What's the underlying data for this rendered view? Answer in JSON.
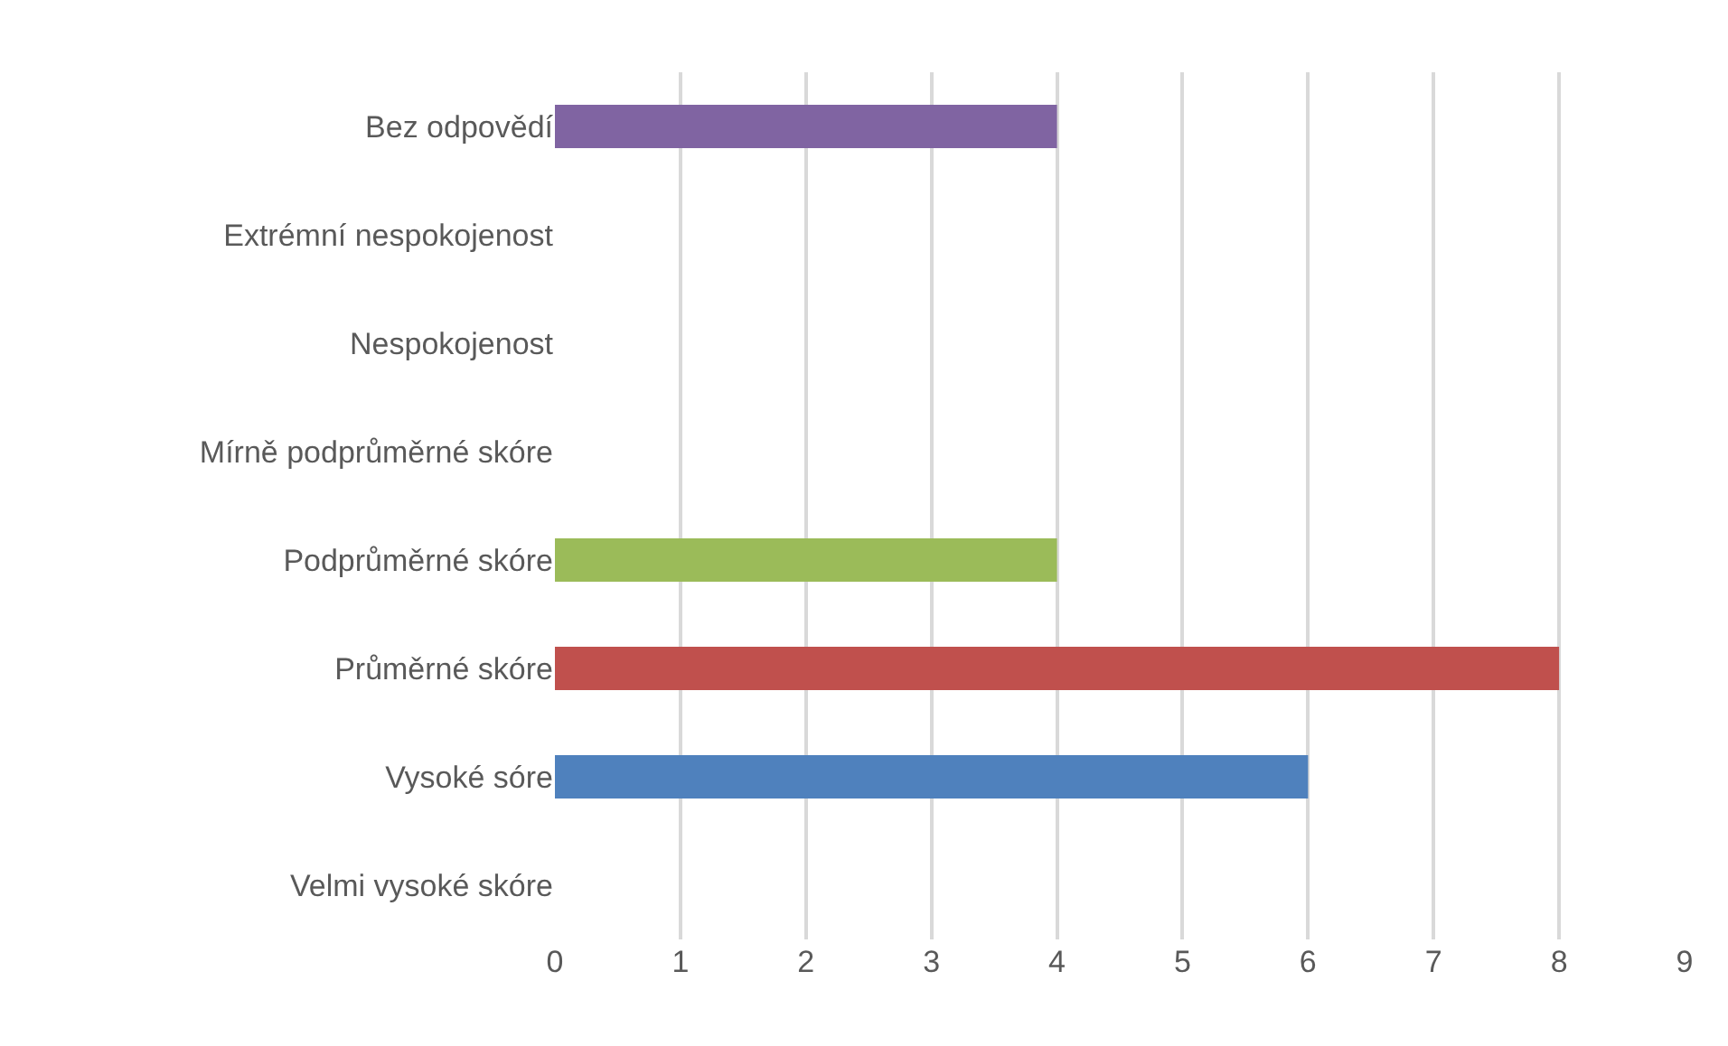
{
  "chart_data": {
    "type": "bar",
    "orientation": "horizontal",
    "categories": [
      "Bez odpovědí",
      "Extrémní nespokojenost",
      "Nespokojenost",
      "Mírně podprůměrné skóre",
      "Podprůměrné skóre",
      "Průměrné skóre",
      "Vysoké sóre",
      "Velmi vysoké skóre"
    ],
    "values": [
      4,
      0,
      0,
      0,
      4,
      8,
      6,
      0
    ],
    "colors": [
      "#8064a2",
      "#4f81bd",
      "#4f81bd",
      "#4f81bd",
      "#9bbb59",
      "#c0504d",
      "#4f81bd",
      "#4f81bd"
    ],
    "xlim": [
      0,
      9
    ],
    "xticks": [
      0,
      1,
      2,
      3,
      4,
      5,
      6,
      7,
      8,
      9
    ],
    "grid": "x",
    "legend": false
  }
}
